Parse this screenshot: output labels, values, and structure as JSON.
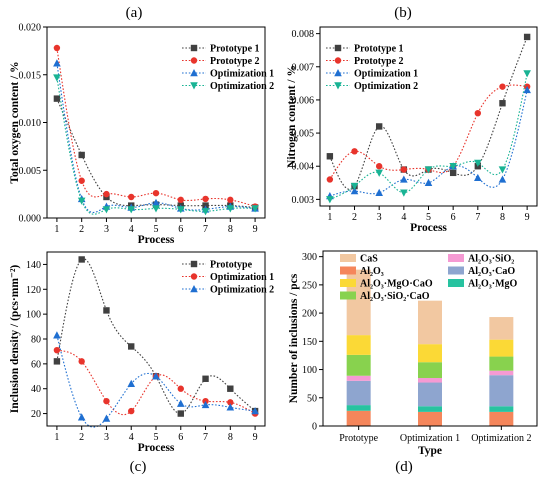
{
  "chart_data": [
    {
      "panel_label": "(a)",
      "type": "line",
      "xlabel": "Process",
      "ylabel": "Total oxygen content / %",
      "x": [
        1,
        2,
        3,
        4,
        5,
        6,
        7,
        8,
        9
      ],
      "xlim": [
        0.6,
        9.4
      ],
      "ylim": [
        0,
        0.02
      ],
      "yticks": [
        "0.000",
        "0.005",
        "0.010",
        "0.015",
        "0.020"
      ],
      "legend_position": "top-right",
      "series": [
        {
          "name": "Prototype 1",
          "color": "#404040",
          "marker": "square",
          "values": [
            0.0125,
            0.0066,
            0.0022,
            0.0013,
            0.0014,
            0.0013,
            0.0013,
            0.0013,
            0.0011
          ]
        },
        {
          "name": "Prototype 2",
          "color": "#e8342c",
          "marker": "circle",
          "values": [
            0.0178,
            0.0039,
            0.0025,
            0.0022,
            0.0026,
            0.0019,
            0.002,
            0.0019,
            0.0012
          ]
        },
        {
          "name": "Optimization 1",
          "color": "#1f6fd1",
          "marker": "triangle",
          "values": [
            0.0162,
            0.002,
            0.0012,
            0.0011,
            0.0016,
            0.001,
            0.0009,
            0.0012,
            0.001
          ]
        },
        {
          "name": "Optimization 2",
          "color": "#19b394",
          "marker": "triangle-down",
          "values": [
            0.0147,
            0.0018,
            0.0009,
            0.0009,
            0.001,
            0.0009,
            0.0007,
            0.001,
            0.001
          ]
        }
      ]
    },
    {
      "panel_label": "(b)",
      "type": "line",
      "xlabel": "Process",
      "ylabel": "Nitrogen content / %",
      "x": [
        1,
        2,
        3,
        4,
        5,
        6,
        7,
        8,
        9
      ],
      "xlim": [
        0.6,
        9.4
      ],
      "ylim": [
        0.0028,
        0.0082
      ],
      "yticks": [
        "0.003",
        "0.004",
        "0.005",
        "0.006",
        "0.007",
        "0.008"
      ],
      "legend_position": "top-left",
      "series": [
        {
          "name": "Prototype 1",
          "color": "#404040",
          "marker": "square",
          "values": [
            0.0043,
            0.0034,
            0.0052,
            0.0039,
            0.0039,
            0.0038,
            0.004,
            0.0059,
            0.0079
          ]
        },
        {
          "name": "Prototype 2",
          "color": "#e8342c",
          "marker": "circle",
          "values": [
            0.0036,
            0.00445,
            0.004,
            0.0039,
            0.0039,
            0.004,
            0.0056,
            0.0064,
            0.0064
          ]
        },
        {
          "name": "Optimization 1",
          "color": "#1f6fd1",
          "marker": "triangle",
          "values": [
            0.0031,
            0.00325,
            0.0032,
            0.0036,
            0.0035,
            0.004,
            0.00365,
            0.0036,
            0.0063
          ]
        },
        {
          "name": "Optimization 2",
          "color": "#19b394",
          "marker": "triangle-down",
          "values": [
            0.003,
            0.0034,
            0.0038,
            0.0032,
            0.0039,
            0.004,
            0.0041,
            0.0039,
            0.0068
          ]
        }
      ]
    },
    {
      "panel_label": "(c)",
      "type": "line",
      "xlabel": "Process",
      "ylabel": "Inclusion density / (pcs·mm⁻²)",
      "x": [
        1,
        2,
        3,
        4,
        5,
        6,
        7,
        8,
        9
      ],
      "xlim": [
        0.6,
        9.4
      ],
      "ylim": [
        10,
        150
      ],
      "yticks": [
        "20",
        "40",
        "60",
        "80",
        "100",
        "120",
        "140"
      ],
      "legend_position": "top-right",
      "series": [
        {
          "name": "Prototype",
          "color": "#404040",
          "marker": "square",
          "values": [
            62,
            144,
            103,
            74,
            50,
            20,
            48,
            40,
            22
          ]
        },
        {
          "name": "Optimization 1",
          "color": "#e8342c",
          "marker": "circle",
          "values": [
            71,
            62,
            30,
            22,
            50,
            40,
            30,
            29,
            20
          ]
        },
        {
          "name": "Optimization 2",
          "color": "#1f6fd1",
          "marker": "triangle",
          "values": [
            83,
            17,
            16,
            44,
            50,
            28,
            27,
            25,
            22
          ]
        }
      ]
    },
    {
      "panel_label": "(d)",
      "type": "bar",
      "stacked": true,
      "xlabel": "Type",
      "ylabel": "Number of inclusions / pcs",
      "categories": [
        "Prototype",
        "Optimization 1",
        "Optimization 2"
      ],
      "ylim": [
        0,
        310
      ],
      "yticks": [
        "0",
        "50",
        "100",
        "150",
        "200",
        "250",
        "300"
      ],
      "legend_position": "top",
      "series": [
        {
          "name": "Al₂O₃",
          "color": "#f5865b",
          "values": [
            27,
            25,
            25
          ]
        },
        {
          "name": "Al₂O₃·MgO",
          "color": "#27c3a0",
          "values": [
            10,
            10,
            10
          ]
        },
        {
          "name": "Al₂O₃·CaO",
          "color": "#8ea5cf",
          "values": [
            43,
            42,
            55
          ]
        },
        {
          "name": "Al₂O₃·SiO₂",
          "color": "#f59ad3",
          "values": [
            9,
            8,
            8
          ]
        },
        {
          "name": "Al₂O₃·SiO₂·CaO",
          "color": "#88d24e",
          "values": [
            37,
            28,
            25
          ]
        },
        {
          "name": "Al₂O₃·MgO·CaO",
          "color": "#fbd936",
          "values": [
            35,
            32,
            30
          ]
        },
        {
          "name": "CaS",
          "color": "#f2c8a1",
          "values": [
            116,
            77,
            40
          ]
        }
      ]
    }
  ]
}
